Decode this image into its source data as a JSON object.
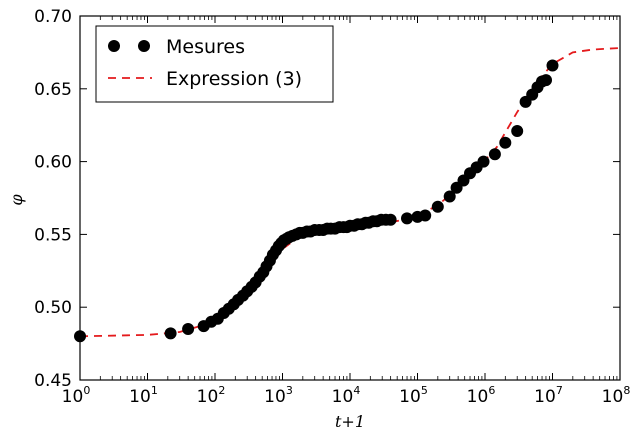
{
  "chart_data": {
    "type": "scatter",
    "title": "",
    "xlabel": "t+1",
    "ylabel": "φ",
    "xscale": "log",
    "xlim": [
      1,
      100000000
    ],
    "ylim": [
      0.45,
      0.7
    ],
    "x_tick_base": "10",
    "x_tick_exponents": [
      "0",
      "1",
      "2",
      "3",
      "4",
      "5",
      "6",
      "7",
      "8"
    ],
    "y_ticks": [
      "0.45",
      "0.50",
      "0.55",
      "0.60",
      "0.65",
      "0.70"
    ],
    "grid": false,
    "legend": "top-left",
    "series": [
      {
        "name": "Mesures",
        "kind": "markers",
        "color": "#000000",
        "x": [
          1,
          22,
          40,
          68,
          88,
          110,
          135,
          160,
          190,
          220,
          260,
          300,
          350,
          400,
          460,
          520,
          580,
          650,
          720,
          800,
          880,
          960,
          1050,
          1150,
          1250,
          1400,
          1600,
          1800,
          2000,
          2300,
          2600,
          3000,
          3500,
          4000,
          4600,
          5200,
          6000,
          7000,
          8000,
          9000,
          10000,
          11500,
          13000,
          15000,
          17000,
          19000,
          22000,
          25000,
          29000,
          34000,
          40000,
          70000,
          100000,
          130000,
          200000,
          300000,
          380000,
          480000,
          600000,
          750000,
          950000,
          1400000,
          2000000,
          3000000,
          4000000,
          5000000,
          6000000,
          7000000,
          8000000,
          10000000
        ],
        "y": [
          0.48,
          0.482,
          0.485,
          0.487,
          0.49,
          0.492,
          0.496,
          0.499,
          0.502,
          0.505,
          0.508,
          0.511,
          0.514,
          0.517,
          0.521,
          0.524,
          0.528,
          0.532,
          0.536,
          0.539,
          0.542,
          0.544,
          0.546,
          0.547,
          0.548,
          0.549,
          0.55,
          0.551,
          0.551,
          0.552,
          0.552,
          0.553,
          0.553,
          0.553,
          0.554,
          0.554,
          0.554,
          0.555,
          0.555,
          0.555,
          0.556,
          0.556,
          0.557,
          0.557,
          0.558,
          0.558,
          0.559,
          0.559,
          0.56,
          0.56,
          0.56,
          0.561,
          0.562,
          0.563,
          0.569,
          0.576,
          0.582,
          0.587,
          0.592,
          0.596,
          0.6,
          0.605,
          0.613,
          0.621,
          0.641,
          0.646,
          0.651,
          0.655,
          0.656,
          0.666
        ]
      },
      {
        "name": "Expression (3)",
        "kind": "dashed-line",
        "color": "#e41a1c",
        "x": [
          1,
          10,
          30,
          60,
          100,
          200,
          400,
          700,
          1000,
          1500,
          2000,
          5000,
          10000,
          30000,
          60000,
          100000,
          200000,
          400000,
          800000,
          1500000,
          3000000,
          6000000,
          10000000,
          20000000,
          40000000,
          100000000
        ],
        "y": [
          0.48,
          0.481,
          0.483,
          0.487,
          0.491,
          0.5,
          0.514,
          0.53,
          0.54,
          0.546,
          0.549,
          0.552,
          0.554,
          0.557,
          0.56,
          0.563,
          0.57,
          0.582,
          0.596,
          0.61,
          0.634,
          0.655,
          0.667,
          0.675,
          0.677,
          0.678
        ]
      }
    ]
  }
}
